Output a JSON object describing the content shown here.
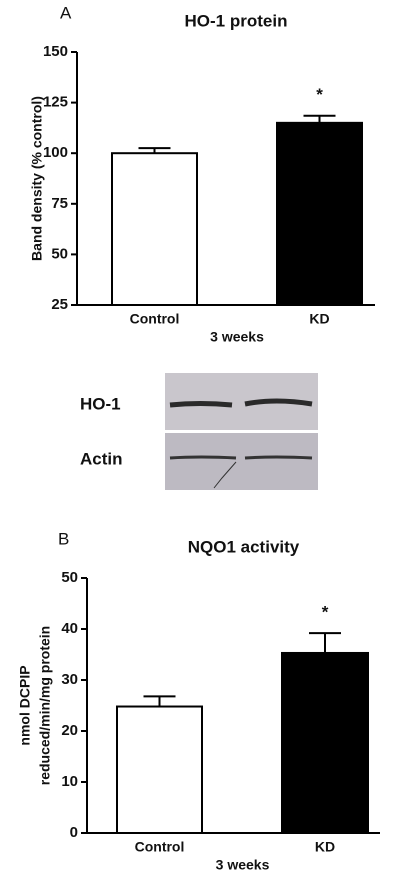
{
  "chart_data": [
    {
      "type": "bar",
      "panel": "A",
      "title": "HO-1 protein",
      "categories": [
        "Control",
        "KD"
      ],
      "values": [
        100,
        115
      ],
      "errors": [
        2.5,
        3.5
      ],
      "colors": [
        "#ffffff",
        "#000000"
      ],
      "edge_color": "#000000",
      "xlabel": "3 weeks",
      "ylabel": "Band density (% control)",
      "ylim": [
        25,
        150
      ],
      "yticks": [
        25,
        50,
        75,
        100,
        125,
        150
      ],
      "significance": {
        "index": 1,
        "label": "*"
      }
    },
    {
      "type": "bar",
      "panel": "B",
      "title": "NQO1 activity",
      "categories": [
        "Control",
        "KD"
      ],
      "values": [
        24.8,
        35.3
      ],
      "errors": [
        2,
        3.9
      ],
      "colors": [
        "#ffffff",
        "#000000"
      ],
      "edge_color": "#000000",
      "xlabel": "3 weeks",
      "ylabel": [
        "nmol DCPIP",
        "reduced/min/mg protein"
      ],
      "ylim": [
        0,
        50
      ],
      "yticks": [
        0,
        10,
        20,
        30,
        40,
        50
      ],
      "significance": {
        "index": 1,
        "label": "*"
      }
    }
  ],
  "blot": {
    "rows": [
      "HO-1",
      "Actin"
    ]
  }
}
